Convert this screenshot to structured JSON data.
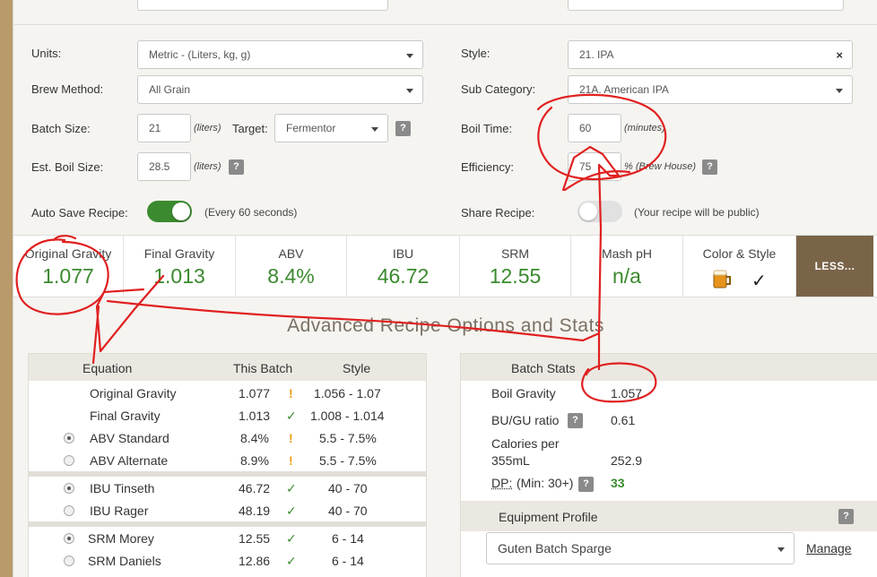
{
  "form": {
    "units_label": "Units:",
    "units_value": "Metric - (Liters, kg, g)",
    "brew_method_label": "Brew Method:",
    "brew_method_value": "All Grain",
    "batch_size_label": "Batch Size:",
    "batch_size_value": "21",
    "batch_size_unit": "(liters)",
    "target_label": "Target:",
    "target_value": "Fermentor",
    "boil_size_label": "Est. Boil Size:",
    "boil_size_value": "28.5",
    "boil_size_unit": "(liters)",
    "autosave_label": "Auto Save Recipe:",
    "autosave_note": "(Every 60 seconds)",
    "style_label": "Style:",
    "style_value": "21. IPA",
    "subcat_label": "Sub Category:",
    "subcat_value": "21A. American IPA",
    "boil_time_label": "Boil Time:",
    "boil_time_value": "60",
    "boil_time_unit": "(minutes)",
    "efficiency_label": "Efficiency:",
    "efficiency_value": "75",
    "efficiency_unit": "% (Brew House)",
    "share_label": "Share Recipe:",
    "share_note": "(Your recipe will be public)",
    "help": "?",
    "autosave_on": true,
    "share_on": false
  },
  "stats": [
    {
      "label": "Original Gravity",
      "value": "1.077"
    },
    {
      "label": "Final Gravity",
      "value": "1.013"
    },
    {
      "label": "ABV",
      "value": "8.4%"
    },
    {
      "label": "IBU",
      "value": "46.72"
    },
    {
      "label": "SRM",
      "value": "12.55"
    },
    {
      "label": "Mash pH",
      "value": "n/a"
    },
    {
      "label": "Color & Style",
      "value": "✓"
    }
  ],
  "less_button": "LESS...",
  "advanced_heading": "Advanced Recipe Options and Stats",
  "equation_table": {
    "headers": {
      "equation": "Equation",
      "batch": "This Batch",
      "style": "Style"
    },
    "rows": [
      {
        "name": "Original Gravity",
        "batch": "1.077",
        "flag": "!",
        "style": "1.056 - 1.07"
      },
      {
        "name": "Final Gravity",
        "batch": "1.013",
        "flag": "✓",
        "style": "1.008 - 1.014"
      },
      {
        "name": "ABV Standard",
        "batch": "8.4%",
        "flag": "!",
        "style": "5.5 - 7.5%"
      },
      {
        "name": "ABV Alternate",
        "batch": "8.9%",
        "flag": "!",
        "style": "5.5 - 7.5%"
      },
      {
        "name": "IBU Tinseth",
        "batch": "46.72",
        "flag": "✓",
        "style": "40 - 70"
      },
      {
        "name": "IBU Rager",
        "batch": "48.19",
        "flag": "✓",
        "style": "40 - 70"
      },
      {
        "name": "SRM Morey",
        "batch": "12.55",
        "flag": "✓",
        "style": "6 - 14"
      },
      {
        "name": "SRM Daniels",
        "batch": "12.86",
        "flag": "✓",
        "style": "6 - 14"
      }
    ]
  },
  "batch_stats": {
    "header": "Batch Stats",
    "boil_gravity_label": "Boil Gravity",
    "boil_gravity_value": "1.057",
    "bugu_label": "BU/GU ratio",
    "bugu_value": "0.61",
    "calories_label_1": "Calories per",
    "calories_label_2": "355mL",
    "calories_value": "252.9",
    "dp_label": "DP:",
    "dp_min": "(Min: 30+)",
    "dp_value": "33"
  },
  "equipment": {
    "header": "Equipment Profile",
    "value": "Guten Batch Sparge",
    "manage": "Manage"
  },
  "colors": {
    "green": "#3b8a2f",
    "warn": "#f39c12",
    "annotation": "#e02020",
    "less_bg": "#7a6448"
  }
}
